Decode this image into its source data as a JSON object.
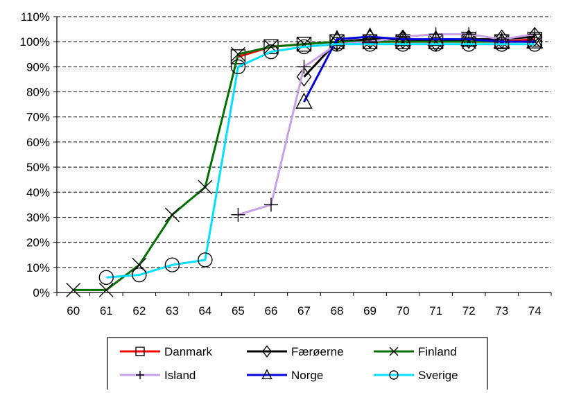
{
  "chart_data": {
    "type": "line",
    "title": "",
    "xlabel": "",
    "ylabel": "",
    "categories": [
      "60",
      "61",
      "62",
      "63",
      "64",
      "65",
      "66",
      "67",
      "68",
      "69",
      "70",
      "71",
      "72",
      "73",
      "74"
    ],
    "ylim": [
      0,
      110
    ],
    "yticks": [
      "0%",
      "10%",
      "20%",
      "30%",
      "40%",
      "50%",
      "60%",
      "70%",
      "80%",
      "90%",
      "100%",
      "110%"
    ],
    "grid": "horizontal-dashed",
    "legend_position": "bottom",
    "series": [
      {
        "name": "Danmark",
        "color": "#ff0000",
        "marker": "square",
        "values": [
          null,
          null,
          null,
          null,
          null,
          94,
          98,
          99,
          100,
          100,
          100,
          100,
          101,
          100,
          101
        ]
      },
      {
        "name": "Færøerne",
        "color": "#000000",
        "marker": "diamond",
        "values": [
          null,
          null,
          null,
          null,
          null,
          null,
          null,
          86,
          100,
          101,
          101,
          100,
          101,
          101,
          102
        ]
      },
      {
        "name": "Finland",
        "color": "#007000",
        "marker": "x",
        "values": [
          1,
          1,
          11,
          31,
          42,
          95,
          98,
          99,
          100,
          100,
          100,
          100,
          100,
          100,
          100
        ]
      },
      {
        "name": "Island",
        "color": "#c8a0e8",
        "marker": "plus",
        "values": [
          null,
          null,
          null,
          null,
          null,
          31,
          35,
          90,
          99,
          100,
          102,
          103,
          103,
          101,
          103
        ]
      },
      {
        "name": "Norge",
        "color": "#0000dd",
        "marker": "triangle",
        "values": [
          null,
          null,
          null,
          null,
          null,
          null,
          null,
          76,
          101,
          102,
          101,
          101,
          101,
          100,
          100
        ]
      },
      {
        "name": "Sverige",
        "color": "#00e0ff",
        "marker": "circle",
        "values": [
          null,
          6,
          7,
          11,
          13,
          90,
          96,
          98,
          99,
          99,
          99,
          99,
          99,
          99,
          99
        ]
      }
    ]
  }
}
